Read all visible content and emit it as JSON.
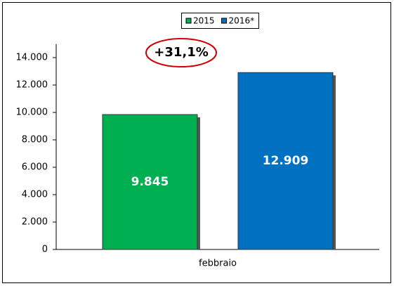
{
  "chart_data": {
    "type": "bar",
    "categories": [
      "febbraio"
    ],
    "series": [
      {
        "name": "2015",
        "color": "#00b050",
        "values": [
          9845
        ],
        "value_labels": [
          "9.845"
        ]
      },
      {
        "name": "2016*",
        "color": "#0070c0",
        "values": [
          12909
        ],
        "value_labels": [
          "12.909"
        ]
      }
    ],
    "annotation": "+31,1%",
    "ylim": [
      0,
      15000
    ],
    "yticks": [
      0,
      {
        "value": 2000,
        "label": "2.000"
      },
      {
        "value": 4000,
        "label": "4.000"
      },
      {
        "value": 6000,
        "label": "6.000"
      },
      {
        "value": 8000,
        "label": "8.000"
      },
      {
        "value": 10000,
        "label": "10.000"
      },
      {
        "value": 12000,
        "label": "12.000"
      },
      {
        "value": 14000,
        "label": "14.000"
      }
    ],
    "grid": false
  }
}
